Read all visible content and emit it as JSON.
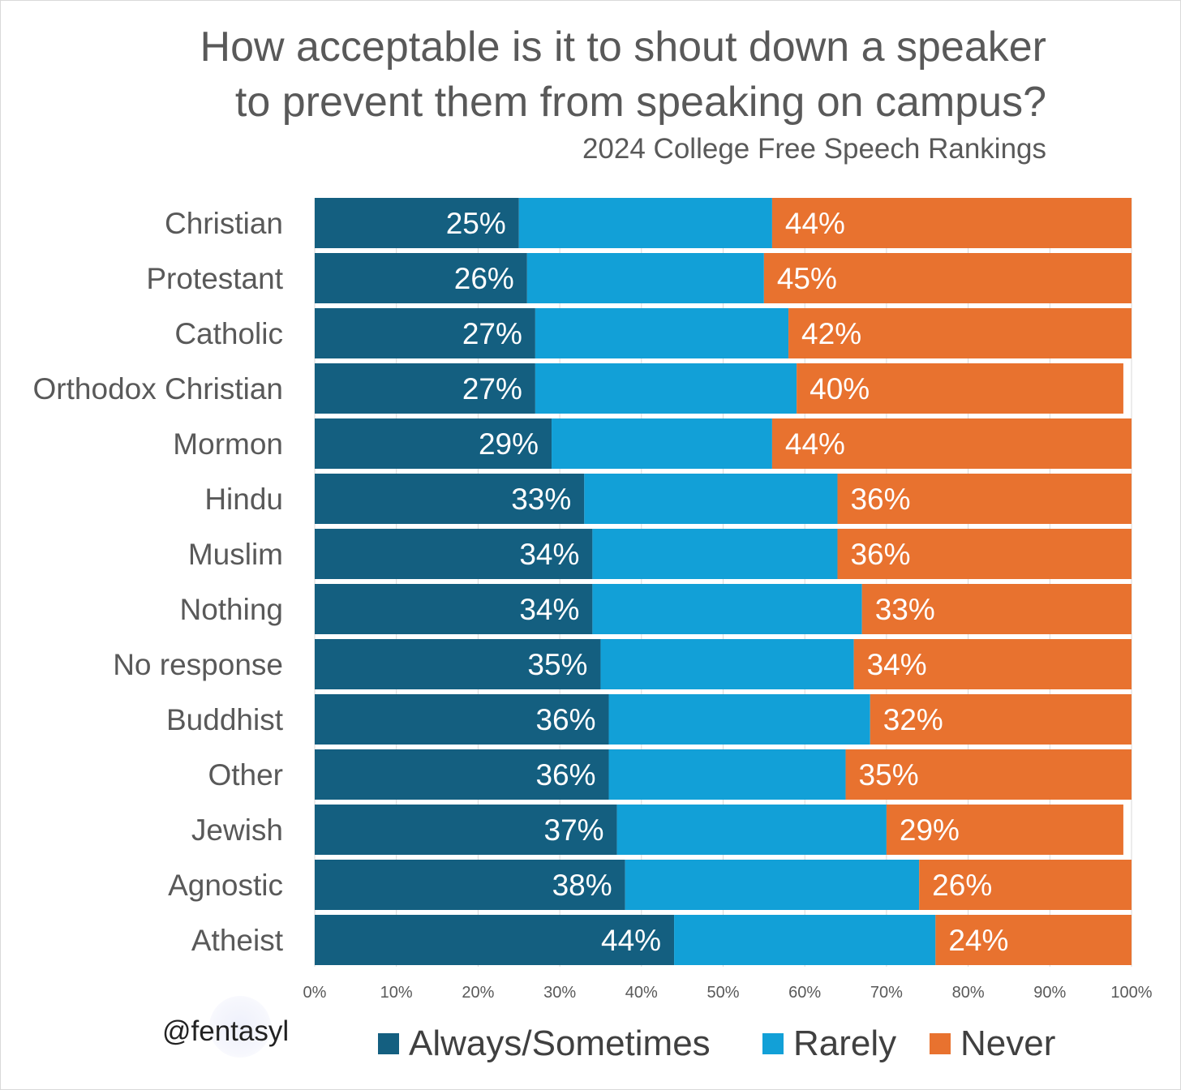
{
  "title_line1": "How acceptable is it to shout down a speaker",
  "title_line2": "to prevent them from speaking on campus?",
  "subtitle": "2024 College Free Speech Rankings",
  "watermark": "@fentasyl",
  "colors": {
    "always_sometimes": "#145f80",
    "rarely": "#12a0d7",
    "never": "#e8722f",
    "grid": "#d9d9d9",
    "label_text": "#595959",
    "bar_text": "#ffffff"
  },
  "chart_data": {
    "type": "bar",
    "orientation": "horizontal",
    "stacked": true,
    "percent_stacked": true,
    "title": "How acceptable is it to shout down a speaker to prevent them from speaking on campus?",
    "subtitle": "2024 College Free Speech Rankings",
    "categories": [
      "Christian",
      "Protestant",
      "Catholic",
      "Orthodox Christian",
      "Mormon",
      "Hindu",
      "Muslim",
      "Nothing",
      "No response",
      "Buddhist",
      "Other",
      "Jewish",
      "Agnostic",
      "Atheist"
    ],
    "series": [
      {
        "name": "Always/Sometimes",
        "values": [
          25,
          26,
          27,
          27,
          29,
          33,
          34,
          34,
          35,
          36,
          36,
          37,
          38,
          44
        ],
        "labeled": true
      },
      {
        "name": "Rarely",
        "values": [
          31,
          29,
          31,
          32,
          27,
          31,
          30,
          33,
          31,
          32,
          29,
          33,
          36,
          32
        ],
        "labeled": false
      },
      {
        "name": "Never",
        "values": [
          44,
          45,
          42,
          40,
          44,
          36,
          36,
          33,
          34,
          32,
          35,
          29,
          26,
          24
        ],
        "labeled": true
      }
    ],
    "x_ticks": [
      "0%",
      "10%",
      "20%",
      "30%",
      "40%",
      "50%",
      "60%",
      "70%",
      "80%",
      "90%",
      "100%"
    ],
    "xlim": [
      0,
      100
    ],
    "grid": true,
    "legend": "bottom"
  },
  "legend": [
    {
      "label": "Always/Sometimes",
      "color_key": "always_sometimes"
    },
    {
      "label": "Rarely",
      "color_key": "rarely"
    },
    {
      "label": "Never",
      "color_key": "never"
    }
  ]
}
